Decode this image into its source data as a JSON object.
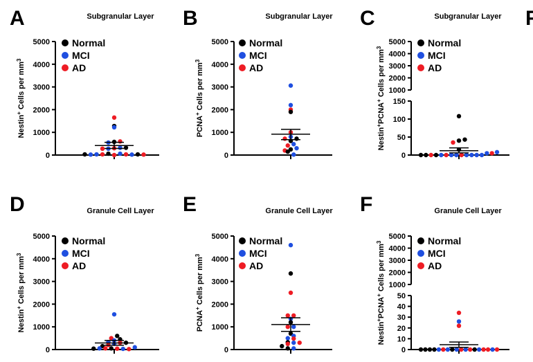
{
  "colors": {
    "Normal": "#000000",
    "MCI": "#1f4fe0",
    "AD": "#ee1c24"
  },
  "legend": [
    {
      "label": "Normal",
      "color": "#000000"
    },
    {
      "label": "MCI",
      "color": "#1f4fe0"
    },
    {
      "label": "AD",
      "color": "#ee1c24"
    }
  ],
  "edge_letter": "F",
  "chart_data": [
    {
      "id": "A",
      "type": "scatter",
      "title": "Subgranular Layer",
      "ylabel": {
        "base": "Nestin",
        "sup1": "+",
        "mid": " Cells per mm",
        "sup2": "3"
      },
      "ylim": [
        0,
        5000
      ],
      "yticks": [
        0,
        1000,
        2000,
        3000,
        4000,
        5000
      ],
      "mean": 420,
      "sem_low": 290,
      "sem_high": 560,
      "points": [
        {
          "group": "Normal",
          "value": 30
        },
        {
          "group": "MCI",
          "value": 20
        },
        {
          "group": "MCI",
          "value": 30
        },
        {
          "group": "AD",
          "value": 30
        },
        {
          "group": "Normal",
          "value": 60
        },
        {
          "group": "AD",
          "value": 0
        },
        {
          "group": "MCI",
          "value": 60
        },
        {
          "group": "AD",
          "value": 30
        },
        {
          "group": "MCI",
          "value": 20
        },
        {
          "group": "Normal",
          "value": 30
        },
        {
          "group": "AD",
          "value": 20
        },
        {
          "group": "AD",
          "value": 280
        },
        {
          "group": "MCI",
          "value": 280
        },
        {
          "group": "AD",
          "value": 300
        },
        {
          "group": "MCI",
          "value": 320
        },
        {
          "group": "Normal",
          "value": 320
        },
        {
          "group": "MCI",
          "value": 550
        },
        {
          "group": "Normal",
          "value": 580
        },
        {
          "group": "AD",
          "value": 600
        },
        {
          "group": "MCI",
          "value": 1220
        },
        {
          "group": "Normal",
          "value": 1280
        },
        {
          "group": "AD",
          "value": 1650
        }
      ]
    },
    {
      "id": "B",
      "type": "scatter",
      "title": "Subgranular Layer",
      "ylabel": {
        "base": "PCNA",
        "sup1": "+",
        "mid": " Cells per mm",
        "sup2": "3"
      },
      "ylim": [
        0,
        5000
      ],
      "yticks": [
        0,
        1000,
        2000,
        3000,
        4000,
        5000
      ],
      "mean": 920,
      "sem_low": 680,
      "sem_high": 1130,
      "points": [
        {
          "group": "Normal",
          "value": 150
        },
        {
          "group": "MCI",
          "value": 20
        },
        {
          "group": "AD",
          "value": 200
        },
        {
          "group": "Normal",
          "value": 250
        },
        {
          "group": "MCI",
          "value": 300
        },
        {
          "group": "AD",
          "value": 420
        },
        {
          "group": "MCI",
          "value": 480
        },
        {
          "group": "Normal",
          "value": 620
        },
        {
          "group": "AD",
          "value": 720
        },
        {
          "group": "MCI",
          "value": 800
        },
        {
          "group": "Normal",
          "value": 720
        },
        {
          "group": "AD",
          "value": 1000
        },
        {
          "group": "Normal",
          "value": 1900
        },
        {
          "group": "MCI",
          "value": 2200
        },
        {
          "group": "AD",
          "value": 2000
        },
        {
          "group": "MCI",
          "value": 3060
        }
      ]
    },
    {
      "id": "C",
      "type": "scatter",
      "title": "Subgranular Layer",
      "ylabel": {
        "base": "Nestin",
        "sup1": "+",
        "mid": "PCNA",
        "sup2": "+",
        "tail": " Cells per mm",
        "sup3": "3"
      },
      "broken_axis": true,
      "lower_ylim": [
        0,
        150
      ],
      "lower_yticks": [
        0,
        50,
        100,
        150
      ],
      "upper_ylim": [
        1000,
        5000
      ],
      "upper_yticks": [
        1000,
        2000,
        3000,
        4000,
        5000
      ],
      "mean": 12,
      "sem_low": 6,
      "sem_high": 20,
      "points": [
        {
          "group": "Normal",
          "value": 0
        },
        {
          "group": "Normal",
          "value": 0
        },
        {
          "group": "AD",
          "value": 0
        },
        {
          "group": "Normal",
          "value": 0
        },
        {
          "group": "MCI",
          "value": 0
        },
        {
          "group": "AD",
          "value": 0
        },
        {
          "group": "MCI",
          "value": 0
        },
        {
          "group": "MCI",
          "value": 0
        },
        {
          "group": "AD",
          "value": 0
        },
        {
          "group": "MCI",
          "value": 0
        },
        {
          "group": "MCI",
          "value": 0
        },
        {
          "group": "MCI",
          "value": 0
        },
        {
          "group": "MCI",
          "value": 0
        },
        {
          "group": "MCI",
          "value": 5
        },
        {
          "group": "AD",
          "value": 5
        },
        {
          "group": "MCI",
          "value": 8
        },
        {
          "group": "Normal",
          "value": 15
        },
        {
          "group": "AD",
          "value": 35
        },
        {
          "group": "Normal",
          "value": 40
        },
        {
          "group": "Normal",
          "value": 43
        },
        {
          "group": "Normal",
          "value": 108
        }
      ]
    },
    {
      "id": "D",
      "type": "scatter",
      "title": "Granule Cell Layer",
      "ylabel": {
        "base": "Nestin",
        "sup1": "+",
        "mid": " Cells per mm",
        "sup2": "3"
      },
      "ylim": [
        0,
        5000
      ],
      "yticks": [
        0,
        1000,
        2000,
        3000,
        4000,
        5000
      ],
      "mean": 290,
      "sem_low": 190,
      "sem_high": 400,
      "points": [
        {
          "group": "Normal",
          "value": 40
        },
        {
          "group": "MCI",
          "value": 50
        },
        {
          "group": "AD",
          "value": 50
        },
        {
          "group": "Normal",
          "value": 50
        },
        {
          "group": "AD",
          "value": 40
        },
        {
          "group": "MCI",
          "value": 30
        },
        {
          "group": "AD",
          "value": 20
        },
        {
          "group": "MCI",
          "value": 100
        },
        {
          "group": "Normal",
          "value": 150
        },
        {
          "group": "AD",
          "value": 200
        },
        {
          "group": "MCI",
          "value": 250
        },
        {
          "group": "AD",
          "value": 300
        },
        {
          "group": "Normal",
          "value": 300
        },
        {
          "group": "MCI",
          "value": 330
        },
        {
          "group": "MCI",
          "value": 400
        },
        {
          "group": "Normal",
          "value": 450
        },
        {
          "group": "AD",
          "value": 500
        },
        {
          "group": "Normal",
          "value": 600
        },
        {
          "group": "MCI",
          "value": 1550
        }
      ]
    },
    {
      "id": "E",
      "type": "scatter",
      "title": "Granule Cell Layer",
      "ylabel": {
        "base": "PCNA",
        "sup1": "+",
        "mid": " Cells per mm",
        "sup2": "3"
      },
      "ylim": [
        0,
        5000
      ],
      "yticks": [
        0,
        1000,
        2000,
        3000,
        4000,
        5000
      ],
      "mean": 1100,
      "sem_low": 800,
      "sem_high": 1400,
      "points": [
        {
          "group": "Normal",
          "value": 50
        },
        {
          "group": "MCI",
          "value": 50
        },
        {
          "group": "Normal",
          "value": 150
        },
        {
          "group": "AD",
          "value": 250
        },
        {
          "group": "MCI",
          "value": 300
        },
        {
          "group": "AD",
          "value": 300
        },
        {
          "group": "Normal",
          "value": 320
        },
        {
          "group": "MCI",
          "value": 500
        },
        {
          "group": "AD",
          "value": 480
        },
        {
          "group": "MCI",
          "value": 600
        },
        {
          "group": "Normal",
          "value": 700
        },
        {
          "group": "AD",
          "value": 1000
        },
        {
          "group": "MCI",
          "value": 1000
        },
        {
          "group": "Normal",
          "value": 1200
        },
        {
          "group": "MCI",
          "value": 1350
        },
        {
          "group": "AD",
          "value": 1500
        },
        {
          "group": "AD",
          "value": 1500
        },
        {
          "group": "AD",
          "value": 2500
        },
        {
          "group": "Normal",
          "value": 3350
        },
        {
          "group": "MCI",
          "value": 4600
        }
      ]
    },
    {
      "id": "F",
      "type": "scatter",
      "title": "Granule Cell Layer",
      "ylabel": {
        "base": "Nestin",
        "sup1": "+",
        "mid": "PCNA",
        "sup2": "+",
        "tail": " Cells per mm",
        "sup3": "3"
      },
      "broken_axis": true,
      "lower_ylim": [
        0,
        50
      ],
      "lower_yticks": [
        0,
        10,
        20,
        30,
        40,
        50
      ],
      "upper_ylim": [
        1000,
        5000
      ],
      "upper_yticks": [
        1000,
        2000,
        3000,
        4000,
        5000
      ],
      "mean": 4.5,
      "sem_low": 2,
      "sem_high": 7,
      "points": [
        {
          "group": "Normal",
          "value": 0
        },
        {
          "group": "Normal",
          "value": 0
        },
        {
          "group": "Normal",
          "value": 0
        },
        {
          "group": "Normal",
          "value": 0
        },
        {
          "group": "MCI",
          "value": 0
        },
        {
          "group": "AD",
          "value": 0
        },
        {
          "group": "MCI",
          "value": 0
        },
        {
          "group": "Normal",
          "value": 0
        },
        {
          "group": "MCI",
          "value": 0
        },
        {
          "group": "AD",
          "value": 0
        },
        {
          "group": "MCI",
          "value": 0
        },
        {
          "group": "AD",
          "value": 0
        },
        {
          "group": "Normal",
          "value": 0
        },
        {
          "group": "MCI",
          "value": 0
        },
        {
          "group": "AD",
          "value": 0
        },
        {
          "group": "AD",
          "value": 0
        },
        {
          "group": "MCI",
          "value": 0
        },
        {
          "group": "AD",
          "value": 0
        },
        {
          "group": "AD",
          "value": 22
        },
        {
          "group": "MCI",
          "value": 26
        },
        {
          "group": "AD",
          "value": 34
        }
      ]
    }
  ]
}
